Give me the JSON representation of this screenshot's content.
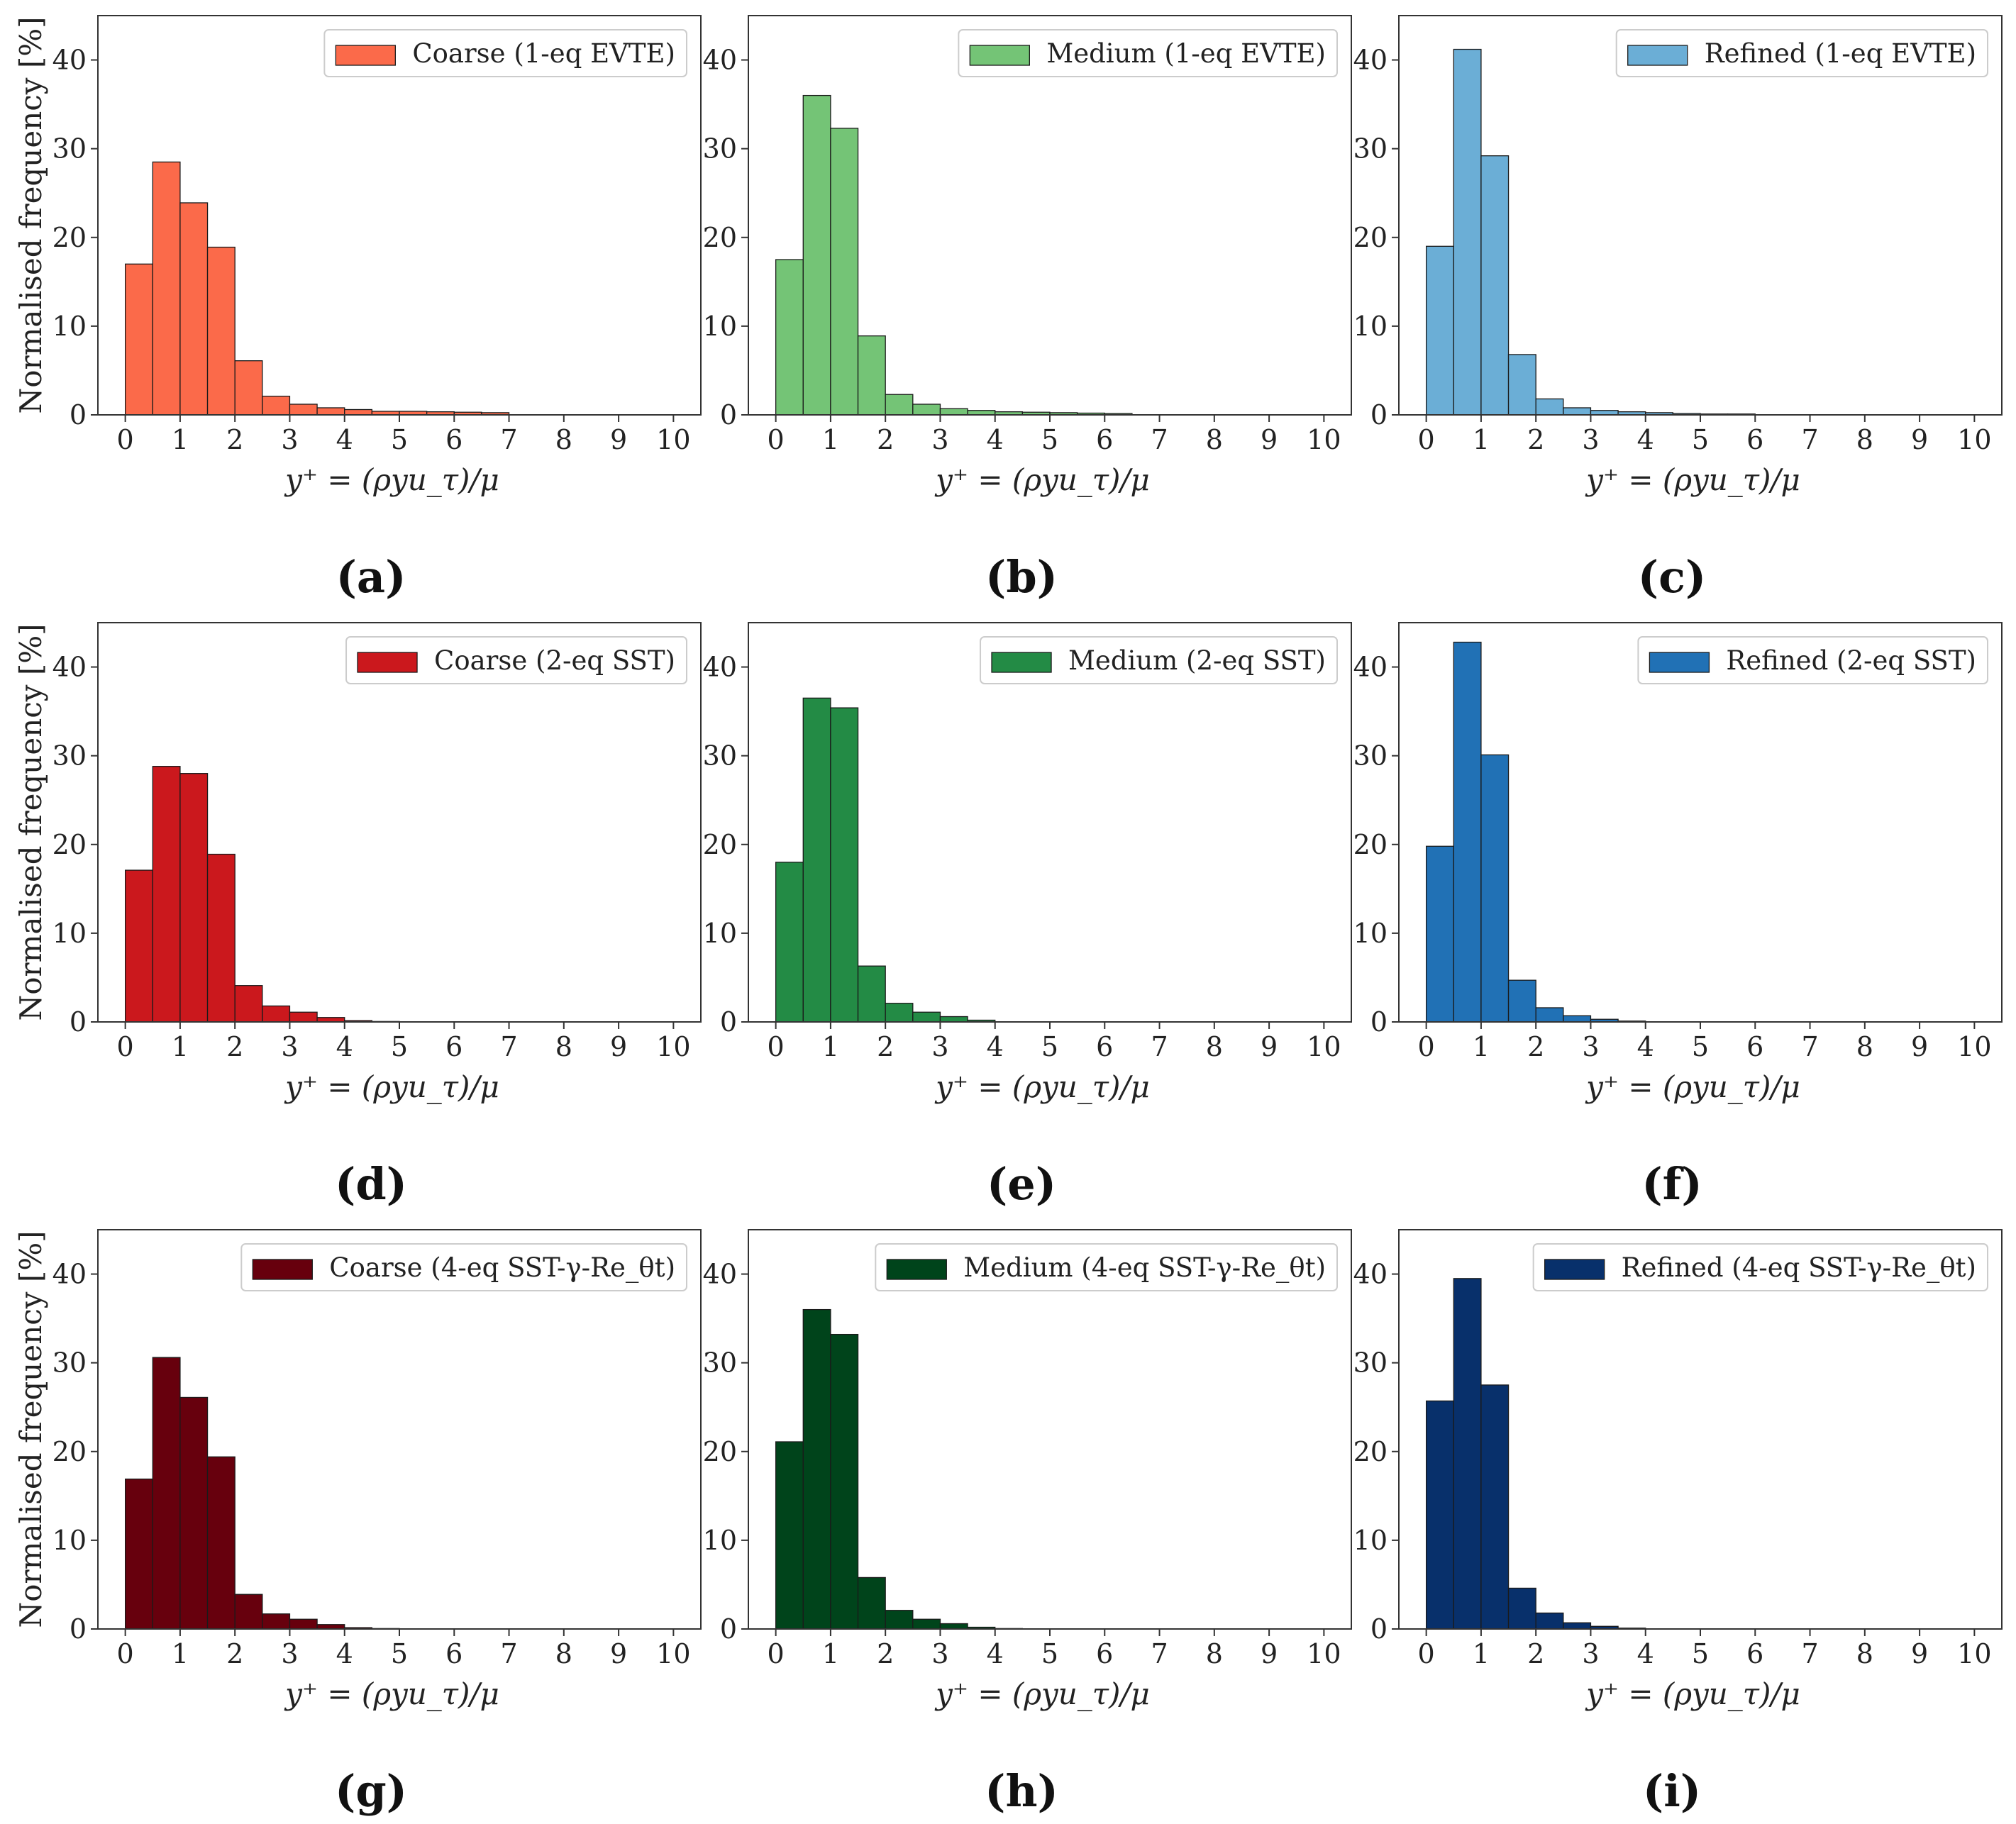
{
  "figure": {
    "xlabel": "y⁺ = (ρyu_τ)/μ",
    "ylabel": "Normalised frequency [%]"
  },
  "chart_data": [
    {
      "type": "bar",
      "label": "(a)",
      "legend": "Coarse (1-eq EVTE)",
      "color": "#fb6a4a",
      "bin_width": 0.5,
      "xlim": [
        -0.5,
        10.5
      ],
      "ylim": [
        0,
        45
      ],
      "xticks": [
        0,
        1,
        2,
        3,
        4,
        5,
        6,
        7,
        8,
        9,
        10
      ],
      "yticks": [
        0,
        10,
        20,
        30,
        40
      ],
      "xlabel": "y⁺ = (ρyu_τ)/μ",
      "ylabel": "Normalised frequency [%]",
      "bins": [
        0,
        0.5,
        1,
        1.5,
        2,
        2.5,
        3,
        3.5,
        4,
        4.5,
        5,
        5.5,
        6,
        6.5
      ],
      "values": [
        17.0,
        28.5,
        23.9,
        18.9,
        6.1,
        2.1,
        1.2,
        0.8,
        0.6,
        0.4,
        0.4,
        0.35,
        0.3,
        0.25
      ]
    },
    {
      "type": "bar",
      "label": "(b)",
      "legend": "Medium (1-eq EVTE)",
      "color": "#74c476",
      "bin_width": 0.5,
      "xlim": [
        -0.5,
        10.5
      ],
      "ylim": [
        0,
        45
      ],
      "xticks": [
        0,
        1,
        2,
        3,
        4,
        5,
        6,
        7,
        8,
        9,
        10
      ],
      "yticks": [
        0,
        10,
        20,
        30,
        40
      ],
      "xlabel": "y⁺ = (ρyu_τ)/μ",
      "ylabel": "",
      "bins": [
        0,
        0.5,
        1,
        1.5,
        2,
        2.5,
        3,
        3.5,
        4,
        4.5,
        5,
        5.5,
        6
      ],
      "values": [
        17.5,
        36.0,
        32.3,
        8.9,
        2.3,
        1.2,
        0.7,
        0.5,
        0.35,
        0.3,
        0.25,
        0.2,
        0.15
      ]
    },
    {
      "type": "bar",
      "label": "(c)",
      "legend": "Refined (1-eq EVTE)",
      "color": "#6baed6",
      "bin_width": 0.5,
      "xlim": [
        -0.5,
        10.5
      ],
      "ylim": [
        0,
        45
      ],
      "xticks": [
        0,
        1,
        2,
        3,
        4,
        5,
        6,
        7,
        8,
        9,
        10
      ],
      "yticks": [
        0,
        10,
        20,
        30,
        40
      ],
      "xlabel": "y⁺ = (ρyu_τ)/μ",
      "ylabel": "",
      "bins": [
        0,
        0.5,
        1,
        1.5,
        2,
        2.5,
        3,
        3.5,
        4,
        4.5,
        5,
        5.5
      ],
      "values": [
        19.0,
        41.2,
        29.2,
        6.8,
        1.8,
        0.8,
        0.5,
        0.35,
        0.25,
        0.15,
        0.1,
        0.1
      ]
    },
    {
      "type": "bar",
      "label": "(d)",
      "legend": "Coarse (2-eq SST)",
      "color": "#cb181d",
      "bin_width": 0.5,
      "xlim": [
        -0.5,
        10.5
      ],
      "ylim": [
        0,
        45
      ],
      "xticks": [
        0,
        1,
        2,
        3,
        4,
        5,
        6,
        7,
        8,
        9,
        10
      ],
      "yticks": [
        0,
        10,
        20,
        30,
        40
      ],
      "xlabel": "y⁺ = (ρyu_τ)/μ",
      "ylabel": "Normalised frequency [%]",
      "bins": [
        0,
        0.5,
        1,
        1.5,
        2,
        2.5,
        3,
        3.5,
        4,
        4.5
      ],
      "values": [
        17.1,
        28.8,
        28.0,
        18.9,
        4.1,
        1.8,
        1.1,
        0.5,
        0.15,
        0.05
      ]
    },
    {
      "type": "bar",
      "label": "(e)",
      "legend": "Medium (2-eq SST)",
      "color": "#238b45",
      "bin_width": 0.5,
      "xlim": [
        -0.5,
        10.5
      ],
      "ylim": [
        0,
        45
      ],
      "xticks": [
        0,
        1,
        2,
        3,
        4,
        5,
        6,
        7,
        8,
        9,
        10
      ],
      "yticks": [
        0,
        10,
        20,
        30,
        40
      ],
      "xlabel": "y⁺ = (ρyu_τ)/μ",
      "ylabel": "",
      "bins": [
        0,
        0.5,
        1,
        1.5,
        2,
        2.5,
        3,
        3.5
      ],
      "values": [
        18.0,
        36.5,
        35.4,
        6.3,
        2.1,
        1.1,
        0.6,
        0.2
      ]
    },
    {
      "type": "bar",
      "label": "(f)",
      "legend": "Refined (2-eq SST)",
      "color": "#2171b5",
      "bin_width": 0.5,
      "xlim": [
        -0.5,
        10.5
      ],
      "ylim": [
        0,
        45
      ],
      "xticks": [
        0,
        1,
        2,
        3,
        4,
        5,
        6,
        7,
        8,
        9,
        10
      ],
      "yticks": [
        0,
        10,
        20,
        30,
        40
      ],
      "xlabel": "y⁺ = (ρyu_τ)/μ",
      "ylabel": "",
      "bins": [
        0,
        0.5,
        1,
        1.5,
        2,
        2.5,
        3,
        3.5
      ],
      "values": [
        19.8,
        42.8,
        30.1,
        4.7,
        1.6,
        0.7,
        0.3,
        0.1
      ]
    },
    {
      "type": "bar",
      "label": "(g)",
      "legend": "Coarse (4-eq SST-γ-Re_θt)",
      "color": "#67000d",
      "bin_width": 0.5,
      "xlim": [
        -0.5,
        10.5
      ],
      "ylim": [
        0,
        45
      ],
      "xticks": [
        0,
        1,
        2,
        3,
        4,
        5,
        6,
        7,
        8,
        9,
        10
      ],
      "yticks": [
        0,
        10,
        20,
        30,
        40
      ],
      "xlabel": "y⁺ = (ρyu_τ)/μ",
      "ylabel": "Normalised frequency [%]",
      "bins": [
        0,
        0.5,
        1,
        1.5,
        2,
        2.5,
        3,
        3.5,
        4,
        4.5
      ],
      "values": [
        16.9,
        30.6,
        26.1,
        19.4,
        3.9,
        1.7,
        1.1,
        0.5,
        0.15,
        0.05
      ]
    },
    {
      "type": "bar",
      "label": "(h)",
      "legend": "Medium (4-eq SST-γ-Re_θt)",
      "color": "#00441b",
      "bin_width": 0.5,
      "xlim": [
        -0.5,
        10.5
      ],
      "ylim": [
        0,
        45
      ],
      "xticks": [
        0,
        1,
        2,
        3,
        4,
        5,
        6,
        7,
        8,
        9,
        10
      ],
      "yticks": [
        0,
        10,
        20,
        30,
        40
      ],
      "xlabel": "y⁺ = (ρyu_τ)/μ",
      "ylabel": "",
      "bins": [
        0,
        0.5,
        1,
        1.5,
        2,
        2.5,
        3,
        3.5,
        4
      ],
      "values": [
        21.1,
        36.0,
        33.2,
        5.8,
        2.1,
        1.1,
        0.6,
        0.2,
        0.05
      ]
    },
    {
      "type": "bar",
      "label": "(i)",
      "legend": "Refined (4-eq SST-γ-Re_θt)",
      "color": "#08306b",
      "bin_width": 0.5,
      "xlim": [
        -0.5,
        10.5
      ],
      "ylim": [
        0,
        45
      ],
      "xticks": [
        0,
        1,
        2,
        3,
        4,
        5,
        6,
        7,
        8,
        9,
        10
      ],
      "yticks": [
        0,
        10,
        20,
        30,
        40
      ],
      "xlabel": "y⁺ = (ρyu_τ)/μ",
      "ylabel": "",
      "bins": [
        0,
        0.5,
        1,
        1.5,
        2,
        2.5,
        3,
        3.5
      ],
      "values": [
        25.7,
        39.5,
        27.5,
        4.6,
        1.8,
        0.7,
        0.3,
        0.1
      ]
    }
  ]
}
